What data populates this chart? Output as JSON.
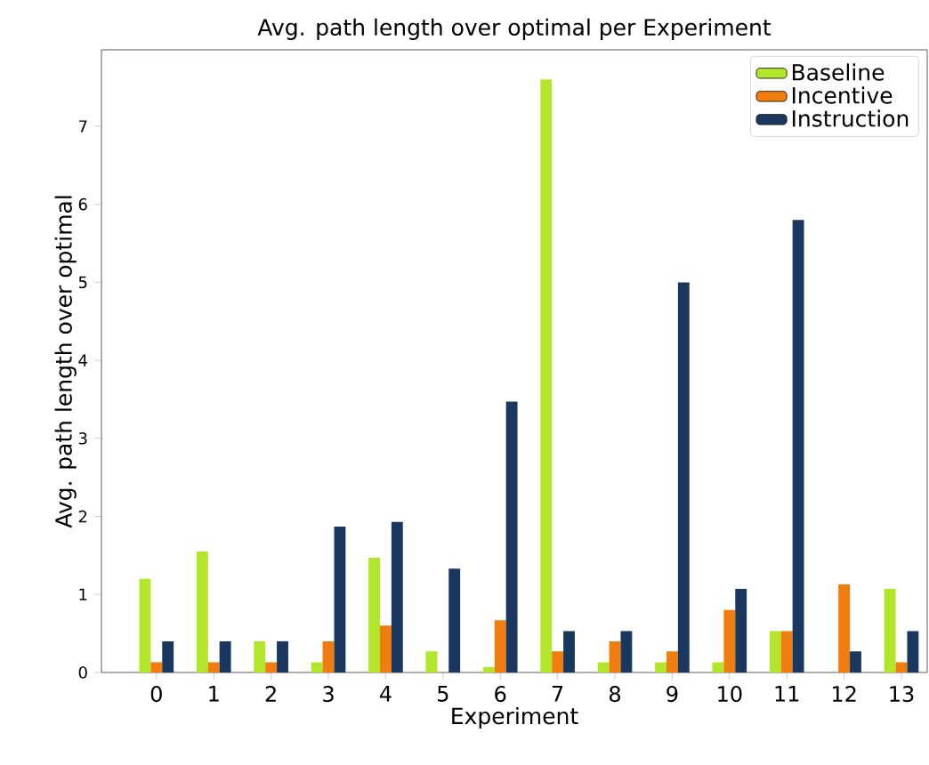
{
  "chart_data": {
    "type": "bar",
    "title": "Avg. path length over optimal per Experiment",
    "xlabel": "Experiment",
    "ylabel": "Avg. path length over optimal",
    "categories": [
      "0",
      "1",
      "2",
      "3",
      "4",
      "5",
      "6",
      "7",
      "8",
      "9",
      "10",
      "11",
      "12",
      "13"
    ],
    "series": [
      {
        "name": "Baseline",
        "color": "#b2e62b",
        "values": [
          1.2,
          1.55,
          0.4,
          0.13,
          1.47,
          0.27,
          0.07,
          7.6,
          0.13,
          0.13,
          0.13,
          0.53,
          0,
          1.07
        ]
      },
      {
        "name": "Incentive",
        "color": "#f07d0e",
        "values": [
          0.13,
          0.13,
          0.13,
          0.4,
          0.6,
          0,
          0.67,
          0.27,
          0.4,
          0.27,
          0.8,
          0.53,
          1.13,
          0.13
        ]
      },
      {
        "name": "Instruction",
        "color": "#1a3760",
        "values": [
          0.4,
          0.4,
          0.4,
          1.87,
          1.93,
          1.33,
          3.47,
          0.53,
          0.53,
          5.0,
          1.07,
          5.8,
          0.27,
          0.53
        ]
      }
    ],
    "ylim": [
      0,
      7.98
    ],
    "yticks": [
      0,
      1,
      2,
      3,
      4,
      5,
      6,
      7
    ],
    "grid": false,
    "legend": "top right"
  }
}
